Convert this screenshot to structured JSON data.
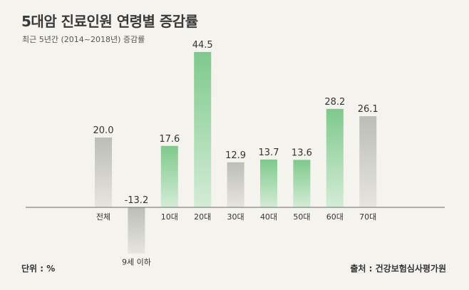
{
  "chart_data": {
    "type": "bar",
    "title": "5대암 진료인원 연령별 증감률",
    "subtitle": "최근 5년간 (2014~2018년) 증감률",
    "categories": [
      "전체",
      "9세 이하",
      "10대",
      "20대",
      "30대",
      "40대",
      "50대",
      "60대",
      "70대"
    ],
    "values": [
      20.0,
      -13.2,
      17.6,
      44.5,
      12.9,
      13.7,
      13.6,
      28.2,
      26.1
    ],
    "value_labels": [
      "20.0",
      "-13.2",
      "17.6",
      "44.5",
      "12.9",
      "13.7",
      "13.6",
      "28.2",
      "26.1"
    ],
    "bar_colors": [
      "#c8c8c3",
      "#c8c8c3",
      "#a9d8b0",
      "#a9d8b0",
      "#c8c8c3",
      "#a9d8b0",
      "#a9d8b0",
      "#a9d8b0",
      "#c8c8c3"
    ],
    "unit_text": "단위 : %",
    "source_text": "출처 : 건강보험심사평가원",
    "xlabel": "",
    "ylabel": "",
    "ylim": [
      -15,
      50
    ],
    "grid": false
  }
}
